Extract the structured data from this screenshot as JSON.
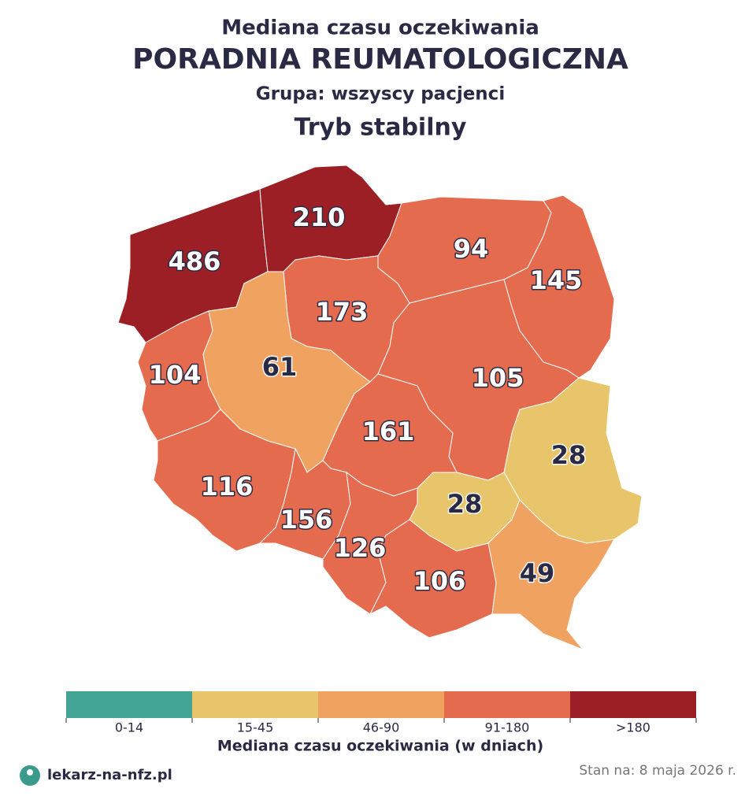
{
  "header": {
    "subtitle": "Mediana czasu oczekiwania",
    "title": "PORADNIA REUMATOLOGICZNA",
    "group": "Grupa: wszyscy pacjenci",
    "mode": "Tryb stabilny"
  },
  "map": {
    "regions": [
      {
        "value": 486,
        "color": "#9b1f24"
      },
      {
        "value": 210,
        "color": "#9b1f24"
      },
      {
        "value": 94,
        "color": "#e56b4e"
      },
      {
        "value": 145,
        "color": "#e56b4e"
      },
      {
        "value": 173,
        "color": "#e56b4e"
      },
      {
        "value": 104,
        "color": "#e56b4e"
      },
      {
        "value": 61,
        "color": "#f0a261"
      },
      {
        "value": 105,
        "color": "#e56b4e"
      },
      {
        "value": 161,
        "color": "#e56b4e"
      },
      {
        "value": 28,
        "color": "#e8c46a"
      },
      {
        "value": 116,
        "color": "#e56b4e"
      },
      {
        "value": 156,
        "color": "#e56b4e"
      },
      {
        "value": 28,
        "color": "#e8c46a"
      },
      {
        "value": 126,
        "color": "#e56b4e"
      },
      {
        "value": 106,
        "color": "#e56b4e"
      },
      {
        "value": 49,
        "color": "#f0a261"
      }
    ]
  },
  "legend": {
    "title": "Mediana czasu oczekiwania (w dniach)",
    "classes": [
      {
        "label": "0-14",
        "color": "#43a595"
      },
      {
        "label": "15-45",
        "color": "#e8c46a"
      },
      {
        "label": "46-90",
        "color": "#f0a261"
      },
      {
        "label": "91-180",
        "color": "#e56b4e"
      },
      {
        "label": ">180",
        "color": "#9b1f24"
      }
    ]
  },
  "footer": {
    "brand": "lekarz-na-nfz.pl",
    "date": "Stan na: 8 maja 2026 r."
  }
}
